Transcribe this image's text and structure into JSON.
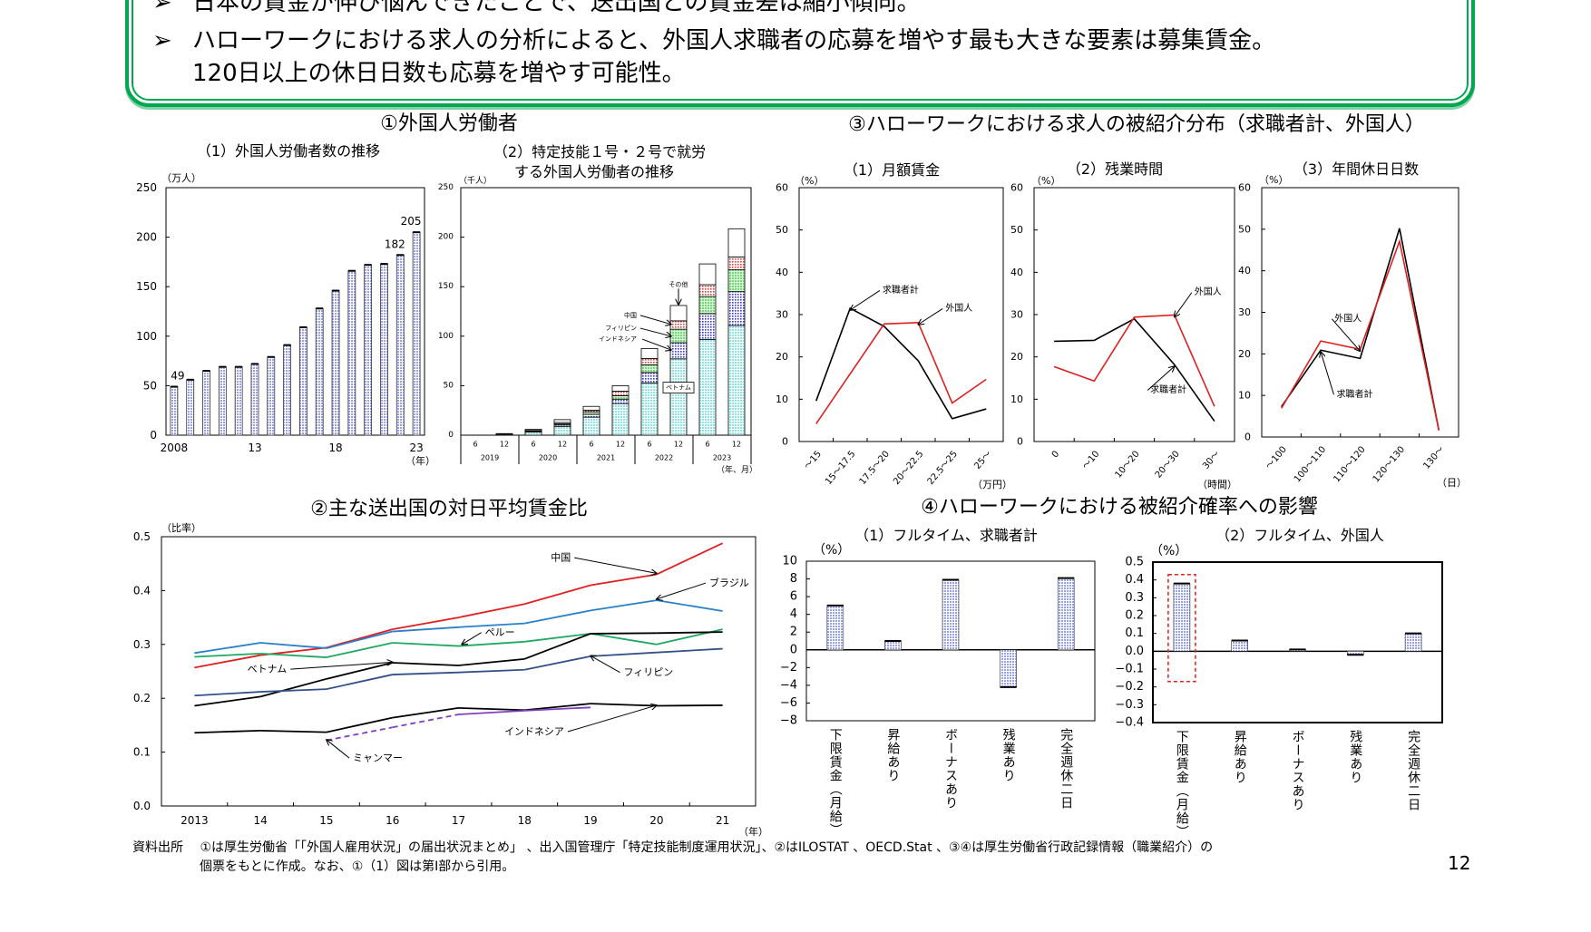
{
  "header": {
    "bullet_icon": "arrow-bullet-icon",
    "bullet_marker": "➢",
    "bullets": [
      "日本の賃金が伸び悩んできたことで、送出国との賃金差は縮小傾向。",
      "ハローワークにおける求人の分析によると、外国人求職者の応募を増やす最も大きな要素は募集賃金。",
      "120日以上の休日日数も応募を増やす可能性。"
    ],
    "border_color": "#00a650"
  },
  "sections": {
    "s1": "①外国人労働者",
    "s2": "②主な送出国の対日平均賃金比",
    "s3": "③ハローワークにおける求人の被紹介分布（求職者計、外国人）",
    "s4": "④ハローワークにおける被紹介確率への影響"
  },
  "footnote": {
    "line1": "資料出所　 ①は厚生労働省「「外国人雇用状況」の届出状況まとめ」 、出入国管理庁「特定技能制度運用状況」、②はILOSTAT 、OECD.Stat 、③④は厚生労働省行政記録情報（職業紹介）の",
    "line2": "個票をもとに作成。なお、①（1）図は第Ⅰ部から引用。"
  },
  "page_number": "12",
  "chart_data": [
    {
      "id": "foreign-workers",
      "type": "bar",
      "title": "（1）外国人労働者数の推移",
      "ylabel": "（万人）",
      "xlabel": "（年）",
      "ylim": [
        0,
        250
      ],
      "y_ticks": [
        0,
        50,
        100,
        150,
        200,
        250
      ],
      "y_tick_labels": [
        "0",
        "50",
        "100",
        "150",
        "200",
        "250"
      ],
      "x": [
        2008,
        2009,
        2010,
        2011,
        2012,
        2013,
        2014,
        2015,
        2016,
        2017,
        2018,
        2019,
        2020,
        2021,
        2022,
        2023
      ],
      "values": [
        49,
        56,
        65,
        69,
        69,
        72,
        79,
        91,
        109,
        128,
        146,
        166,
        172,
        173,
        182,
        205
      ],
      "x_ticks": [
        2008,
        2013,
        2018,
        2023
      ],
      "x_tick_labels": [
        "2008",
        "13",
        "18",
        "23"
      ],
      "data_labels": [
        {
          "x": 2008,
          "label": "49"
        },
        {
          "x": 2022,
          "label": "182"
        },
        {
          "x": 2023,
          "label": "205"
        }
      ],
      "bar_color": "#c9cdf2"
    },
    {
      "id": "specified-skilled",
      "type": "bar",
      "stacked": true,
      "title": [
        "（2）特定技能１号・２号で就労",
        "する外国人労働者の推移"
      ],
      "ylabel": "（千人）",
      "xlabel": "（年、月）",
      "ylim": [
        0,
        250
      ],
      "y_ticks": [
        0,
        50,
        100,
        150,
        200,
        250
      ],
      "y_tick_labels": [
        "0",
        "50",
        "100",
        "150",
        "200",
        "250"
      ],
      "months": [
        "6",
        "12",
        "6",
        "12",
        "6",
        "12",
        "6",
        "12",
        "6",
        "12"
      ],
      "years": [
        "2019",
        "2020",
        "2021",
        "2022",
        "2023"
      ],
      "series": [
        {
          "name": "ベトナム",
          "color": "#b4f0f0",
          "values": [
            0,
            0.9,
            3.3,
            8.9,
            18.2,
            32.0,
            52.7,
            77.1,
            96.6,
            110.7
          ]
        },
        {
          "name": "インドネシア",
          "color": "#3a3ad0",
          "values": [
            0,
            0.2,
            0.5,
            1.5,
            2.9,
            4.4,
            10.6,
            16.3,
            26.2,
            34.3
          ]
        },
        {
          "name": "フィリピン",
          "color": "#9fe89f",
          "values": [
            0,
            0.1,
            0.6,
            1.1,
            2.5,
            3.5,
            7.7,
            13.6,
            17.2,
            22.0
          ]
        },
        {
          "name": "中国",
          "color": "#e86a6a",
          "values": [
            0,
            0.1,
            0.4,
            1.3,
            1.7,
            4.6,
            6.5,
            8.5,
            12.0,
            13.0
          ]
        },
        {
          "name": "その他",
          "color": "#ffffff",
          "values": [
            0,
            0.3,
            1.1,
            2.9,
            3.8,
            5.5,
            10.0,
            15.5,
            21.0,
            28.5
          ]
        }
      ]
    },
    {
      "id": "monthly-wage",
      "type": "line",
      "title": "（1）月額賃金",
      "ylabel": "（%）",
      "xlabel": "（万円）",
      "ylim": [
        0,
        60
      ],
      "y_ticks": [
        0,
        10,
        20,
        30,
        40,
        50,
        60
      ],
      "y_tick_labels": [
        "0",
        "10",
        "20",
        "30",
        "40",
        "50",
        "60"
      ],
      "categories": [
        "～15",
        "15～17.5",
        "17.5～20",
        "20～22.5",
        "22.5～25",
        "25～"
      ],
      "series": [
        {
          "name": "求職者計",
          "color": "#000000",
          "values": [
            9.6,
            31.5,
            27.2,
            19.1,
            5.4,
            7.7
          ]
        },
        {
          "name": "外国人",
          "color": "#e02020",
          "values": [
            4.2,
            16.0,
            27.8,
            28.1,
            9.1,
            14.7
          ]
        }
      ]
    },
    {
      "id": "overtime",
      "type": "line",
      "title": "（2）残業時間",
      "ylabel": "（%）",
      "xlabel": "（時間）",
      "ylim": [
        0,
        60
      ],
      "y_ticks": [
        0,
        10,
        20,
        30,
        40,
        50,
        60
      ],
      "y_tick_labels": [
        "0",
        "10",
        "20",
        "30",
        "40",
        "50",
        "60"
      ],
      "categories": [
        "0",
        "～10",
        "10～20",
        "20～30",
        "30～"
      ],
      "series": [
        {
          "name": "求職者計",
          "color": "#000000",
          "values": [
            23.7,
            23.9,
            29.0,
            18.2,
            4.8
          ]
        },
        {
          "name": "外国人",
          "color": "#e02020",
          "values": [
            17.7,
            14.3,
            29.4,
            29.9,
            8.3
          ]
        }
      ]
    },
    {
      "id": "annual-holidays",
      "type": "line",
      "title": "（3）年間休日日数",
      "ylabel": "（%）",
      "xlabel": "（日）",
      "ylim": [
        0,
        60
      ],
      "y_ticks": [
        0,
        10,
        20,
        30,
        40,
        50,
        60
      ],
      "y_tick_labels": [
        "0",
        "10",
        "20",
        "30",
        "40",
        "50",
        "60"
      ],
      "categories": [
        "～100",
        "100～110",
        "110～120",
        "120～130",
        "130～"
      ],
      "series": [
        {
          "name": "求職者計",
          "color": "#000000",
          "values": [
            7.3,
            20.9,
            18.9,
            50.2,
            1.6
          ]
        },
        {
          "name": "外国人",
          "color": "#e02020",
          "values": [
            6.9,
            23.1,
            21.1,
            47.1,
            1.6
          ]
        }
      ]
    },
    {
      "id": "wage-ratio",
      "type": "line",
      "ylabel": "（比率）",
      "xlabel": "（年）",
      "ylim": [
        0,
        0.5
      ],
      "y_ticks": [
        0,
        0.1,
        0.2,
        0.3,
        0.4,
        0.5
      ],
      "y_tick_labels": [
        "0.0",
        "0.1",
        "0.2",
        "0.3",
        "0.4",
        "0.5"
      ],
      "x": [
        2013,
        2014,
        2015,
        2016,
        2017,
        2018,
        2019,
        2020,
        2021
      ],
      "x_tick_labels": [
        "2013",
        "14",
        "15",
        "16",
        "17",
        "18",
        "19",
        "20",
        "21"
      ],
      "series": [
        {
          "name": "中国",
          "color": "#e02020",
          "values": [
            0.257,
            0.28,
            0.294,
            0.328,
            0.35,
            0.375,
            0.41,
            0.43,
            0.488
          ]
        },
        {
          "name": "ブラジル",
          "color": "#2a80c8",
          "values": [
            0.284,
            0.303,
            0.293,
            0.324,
            0.332,
            0.339,
            0.363,
            0.382,
            0.362
          ]
        },
        {
          "name": "ペルー",
          "color": "#20a860",
          "values": [
            0.277,
            0.283,
            0.276,
            0.303,
            0.297,
            0.305,
            0.32,
            0.3,
            0.328
          ]
        },
        {
          "name": "ベトナム",
          "color": "#000000",
          "values": [
            0.186,
            0.203,
            0.236,
            0.266,
            0.261,
            0.273,
            0.32,
            0.321,
            0.323
          ]
        },
        {
          "name": "フィリピン",
          "color": "#34508a",
          "values": [
            0.205,
            0.212,
            0.217,
            0.244,
            0.248,
            0.253,
            0.278,
            0.285,
            0.292
          ]
        },
        {
          "name": "インドネシア",
          "color": "#000000",
          "values": [
            0.136,
            0.14,
            0.137,
            0.164,
            0.182,
            0.178,
            0.19,
            0.186,
            0.187
          ]
        },
        {
          "name": "ミャンマー",
          "color": "#8040c0",
          "dashed_until": 2017,
          "values": [
            null,
            null,
            0.122,
            0.146,
            0.17,
            0.177,
            0.183,
            null,
            null
          ]
        }
      ]
    },
    {
      "id": "effect-all",
      "type": "bar",
      "title": "（1）フルタイム、求職者計",
      "ylabel": "（%）",
      "ylim": [
        -8,
        10
      ],
      "y_ticks": [
        -8,
        -6,
        -4,
        -2,
        0,
        2,
        4,
        6,
        8,
        10
      ],
      "y_tick_labels": [
        "−8",
        "−6",
        "−4",
        "−2",
        "0",
        "2",
        "4",
        "6",
        "8",
        "10"
      ],
      "categories": [
        "下限賃金（月給）",
        "昇給あり",
        "ボーナスあり",
        "残業あり",
        "完全週休二日"
      ],
      "values": [
        5.0,
        1.0,
        7.9,
        -4.2,
        8.1
      ],
      "bar_color": "#c9cdf2"
    },
    {
      "id": "effect-foreign",
      "type": "bar",
      "title": "（2）フルタイム、外国人",
      "ylabel": "（%）",
      "ylim": [
        -0.4,
        0.5
      ],
      "y_ticks": [
        -0.4,
        -0.3,
        -0.2,
        -0.1,
        0,
        0.1,
        0.2,
        0.3,
        0.4,
        0.5
      ],
      "y_tick_labels": [
        "−0.4",
        "−0.3",
        "−0.2",
        "−0.1",
        "0.0",
        "0.1",
        "0.2",
        "0.3",
        "0.4",
        "0.5"
      ],
      "categories": [
        "下限賃金（月給）",
        "昇給あり",
        "ボーナスあり",
        "残業あり",
        "完全週休二日"
      ],
      "values": [
        0.38,
        0.06,
        0.01,
        -0.02,
        0.1
      ],
      "bar_color": "#c9cdf2",
      "highlight_category": "下限賃金（月給）",
      "highlight_color": "#e02020"
    }
  ]
}
